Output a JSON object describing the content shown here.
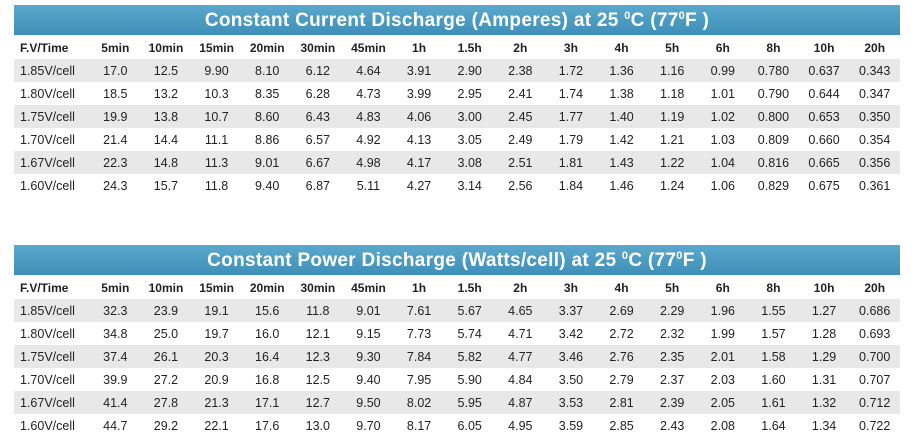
{
  "tables": [
    {
      "title": [
        "Constant Current Discharge (Amperes) at 25 ",
        "0",
        "C (77",
        "0",
        "F )"
      ],
      "header": [
        "F.V/Time",
        "5min",
        "10min",
        "15min",
        "20min",
        "30min",
        "45min",
        "1h",
        "1.5h",
        "2h",
        "3h",
        "4h",
        "5h",
        "6h",
        "8h",
        "10h",
        "20h"
      ],
      "rows": [
        [
          "1.85V/cell",
          "17.0",
          "12.5",
          "9.90",
          "8.10",
          "6.12",
          "4.64",
          "3.91",
          "2.90",
          "2.38",
          "1.72",
          "1.36",
          "1.16",
          "0.99",
          "0.780",
          "0.637",
          "0.343"
        ],
        [
          "1.80V/cell",
          "18.5",
          "13.2",
          "10.3",
          "8.35",
          "6.28",
          "4.73",
          "3.99",
          "2.95",
          "2.41",
          "1.74",
          "1.38",
          "1.18",
          "1.01",
          "0.790",
          "0.644",
          "0.347"
        ],
        [
          "1.75V/cell",
          "19.9",
          "13.8",
          "10.7",
          "8.60",
          "6.43",
          "4.83",
          "4.06",
          "3.00",
          "2.45",
          "1.77",
          "1.40",
          "1.19",
          "1.02",
          "0.800",
          "0.653",
          "0.350"
        ],
        [
          "1.70V/cell",
          "21.4",
          "14.4",
          "11.1",
          "8.86",
          "6.57",
          "4.92",
          "4.13",
          "3.05",
          "2.49",
          "1.79",
          "1.42",
          "1.21",
          "1.03",
          "0.809",
          "0.660",
          "0.354"
        ],
        [
          "1.67V/cell",
          "22.3",
          "14.8",
          "11.3",
          "9.01",
          "6.67",
          "4.98",
          "4.17",
          "3.08",
          "2.51",
          "1.81",
          "1.43",
          "1.22",
          "1.04",
          "0.816",
          "0.665",
          "0.356"
        ],
        [
          "1.60V/cell",
          "24.3",
          "15.7",
          "11.8",
          "9.40",
          "6.87",
          "5.11",
          "4.27",
          "3.14",
          "2.56",
          "1.84",
          "1.46",
          "1.24",
          "1.06",
          "0.829",
          "0.675",
          "0.361"
        ]
      ]
    },
    {
      "title": [
        "Constant Power Discharge (Watts/cell) at 25 ",
        "0",
        "C (77",
        "0",
        "F )"
      ],
      "header": [
        "F.V/Time",
        "5min",
        "10min",
        "15min",
        "20min",
        "30min",
        "45min",
        "1h",
        "1.5h",
        "2h",
        "3h",
        "4h",
        "5h",
        "6h",
        "8h",
        "10h",
        "20h"
      ],
      "rows": [
        [
          "1.85V/cell",
          "32.3",
          "23.9",
          "19.1",
          "15.6",
          "11.8",
          "9.01",
          "7.61",
          "5.67",
          "4.65",
          "3.37",
          "2.69",
          "2.29",
          "1.96",
          "1.55",
          "1.27",
          "0.686"
        ],
        [
          "1.80V/cell",
          "34.8",
          "25.0",
          "19.7",
          "16.0",
          "12.1",
          "9.15",
          "7.73",
          "5.74",
          "4.71",
          "3.42",
          "2.72",
          "2.32",
          "1.99",
          "1.57",
          "1.28",
          "0.693"
        ],
        [
          "1.75V/cell",
          "37.4",
          "26.1",
          "20.3",
          "16.4",
          "12.3",
          "9.30",
          "7.84",
          "5.82",
          "4.77",
          "3.46",
          "2.76",
          "2.35",
          "2.01",
          "1.58",
          "1.29",
          "0.700"
        ],
        [
          "1.70V/cell",
          "39.9",
          "27.2",
          "20.9",
          "16.8",
          "12.5",
          "9.40",
          "7.95",
          "5.90",
          "4.84",
          "3.50",
          "2.79",
          "2.37",
          "2.03",
          "1.60",
          "1.31",
          "0.707"
        ],
        [
          "1.67V/cell",
          "41.4",
          "27.8",
          "21.3",
          "17.1",
          "12.7",
          "9.50",
          "8.02",
          "5.95",
          "4.87",
          "3.53",
          "2.81",
          "2.39",
          "2.05",
          "1.61",
          "1.32",
          "0.712"
        ],
        [
          "1.60V/cell",
          "44.7",
          "29.2",
          "22.1",
          "17.6",
          "13.0",
          "9.70",
          "8.17",
          "6.05",
          "4.95",
          "3.59",
          "2.85",
          "2.43",
          "2.08",
          "1.64",
          "1.34",
          "0.722"
        ]
      ]
    }
  ]
}
